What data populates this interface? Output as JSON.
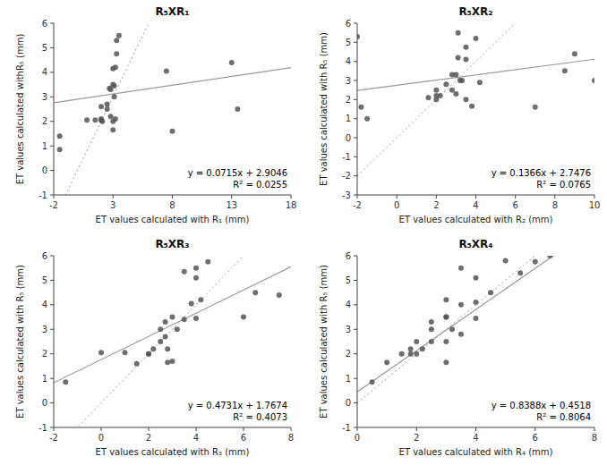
{
  "chart_data": [
    {
      "type": "scatter",
      "title": "R₅XR₁",
      "x_label": "ET values calculated with R₁ (mm)",
      "y_label": "ET values calculated withR₅ (mm)",
      "x": [
        -1.5,
        -1.5,
        0.8,
        1.5,
        2.0,
        2.0,
        2.0,
        2.1,
        2.5,
        2.5,
        2.7,
        2.8,
        2.8,
        3.0,
        3.0,
        3.0,
        3.0,
        3.1,
        3.1,
        3.2,
        3.2,
        3.3,
        3.3,
        3.5,
        7.5,
        8.0,
        13.0,
        13.5
      ],
      "values": [
        0.85,
        1.4,
        2.05,
        2.05,
        2.05,
        2.1,
        2.6,
        2.0,
        2.5,
        2.7,
        3.35,
        2.2,
        3.3,
        1.65,
        2.0,
        3.5,
        4.15,
        3.0,
        3.45,
        2.1,
        4.2,
        4.75,
        5.3,
        5.5,
        4.05,
        1.6,
        4.4,
        2.5
      ],
      "slope": 0.0715,
      "intercept": 2.9046,
      "annotations": [
        "y = 0.0715x + 2.9046",
        "R² = 0.0255"
      ],
      "color": "#555555",
      "grid": false,
      "xlim": [
        -2,
        18
      ],
      "ylim": [
        -1,
        6
      ],
      "xticks": [
        -2,
        3,
        8,
        13,
        18
      ],
      "yticks": [
        -1,
        0,
        1,
        2,
        3,
        4,
        5,
        6
      ]
    },
    {
      "type": "scatter",
      "title": "R₅XR₂",
      "x_label": "ET values calculated with R₂ (mm)",
      "y_label": "ET values calculated with R₅ (mm)",
      "x": [
        -2.0,
        -1.8,
        -1.5,
        1.6,
        2.0,
        2.0,
        2.0,
        2.2,
        2.5,
        2.8,
        2.8,
        3.0,
        3.0,
        3.1,
        3.1,
        3.2,
        3.3,
        3.5,
        3.5,
        3.5,
        3.8,
        4.0,
        4.2,
        7.0,
        8.5,
        9.0,
        10.0
      ],
      "values": [
        5.3,
        1.6,
        1.0,
        2.1,
        2.0,
        2.2,
        2.5,
        2.2,
        2.8,
        2.5,
        3.3,
        2.3,
        3.3,
        4.2,
        5.5,
        3.0,
        3.0,
        2.0,
        4.1,
        4.75,
        1.65,
        5.2,
        2.9,
        1.6,
        3.5,
        4.4,
        3.0
      ],
      "slope": 0.1366,
      "intercept": 2.7476,
      "annotations": [
        "y = 0.1366x + 2.7476",
        "R² = 0.0765"
      ],
      "color": "#555555",
      "grid": false,
      "xlim": [
        -2,
        10
      ],
      "ylim": [
        -3,
        6
      ],
      "xticks": [
        -2,
        0,
        2,
        4,
        6,
        8,
        10
      ],
      "yticks": [
        -3,
        -2,
        -1,
        0,
        1,
        2,
        3,
        4,
        5,
        6
      ]
    },
    {
      "type": "scatter",
      "title": "R₅XR₃",
      "x_label": "ET values calculated with R₃ (mm)",
      "y_label": "ET values calculated with R₅ (mm)",
      "x": [
        -1.5,
        0.0,
        1.0,
        1.5,
        2.0,
        2.0,
        2.2,
        2.5,
        2.5,
        2.7,
        2.7,
        2.8,
        2.8,
        3.0,
        3.0,
        3.2,
        3.5,
        3.5,
        3.8,
        4.0,
        4.0,
        4.0,
        4.2,
        4.5,
        6.0,
        6.5,
        7.5
      ],
      "values": [
        0.85,
        2.05,
        2.05,
        1.6,
        2.0,
        2.0,
        2.2,
        2.5,
        3.0,
        2.7,
        3.3,
        1.65,
        2.2,
        3.5,
        1.7,
        3.0,
        3.4,
        5.35,
        4.05,
        3.45,
        5.1,
        5.5,
        4.2,
        5.75,
        3.5,
        4.5,
        4.4
      ],
      "slope": 0.4731,
      "intercept": 1.7674,
      "annotations": [
        "y = 0.4731x + 1.7674",
        "R² = 0.4073"
      ],
      "color": "#555555",
      "grid": false,
      "xlim": [
        -2,
        8
      ],
      "ylim": [
        -1,
        6
      ],
      "xticks": [
        -2,
        0,
        2,
        4,
        6,
        8
      ],
      "yticks": [
        -1,
        0,
        1,
        2,
        3,
        4,
        5,
        6
      ]
    },
    {
      "type": "scatter",
      "title": "R₅XR₄",
      "x_label": "ET values calculated with R₄ (mm)",
      "y_label": "ET values calculated with R₅ (mm)",
      "x": [
        0.5,
        1.0,
        1.5,
        1.8,
        1.8,
        2.0,
        2.0,
        2.2,
        2.5,
        2.5,
        2.5,
        3.0,
        3.0,
        3.0,
        3.0,
        3.0,
        3.2,
        3.5,
        3.5,
        3.5,
        4.0,
        4.0,
        4.0,
        4.5,
        5.0,
        5.5,
        6.0,
        6.5
      ],
      "values": [
        0.85,
        1.65,
        2.0,
        2.0,
        2.2,
        2.0,
        2.5,
        2.2,
        2.5,
        3.0,
        3.3,
        1.65,
        2.5,
        3.5,
        3.5,
        4.2,
        3.0,
        2.8,
        4.0,
        5.5,
        3.45,
        4.1,
        5.1,
        4.5,
        5.8,
        5.3,
        5.75,
        6.0
      ],
      "slope": 0.8388,
      "intercept": 0.4518,
      "annotations": [
        "y = 0.8388x + 0.4518",
        "R² = 0.8064"
      ],
      "color": "#555555",
      "grid": false,
      "xlim": [
        0,
        8
      ],
      "ylim": [
        -1,
        6
      ],
      "xticks": [
        0,
        2,
        4,
        6,
        8
      ],
      "yticks": [
        -1,
        0,
        1,
        2,
        3,
        4,
        5,
        6
      ]
    }
  ]
}
